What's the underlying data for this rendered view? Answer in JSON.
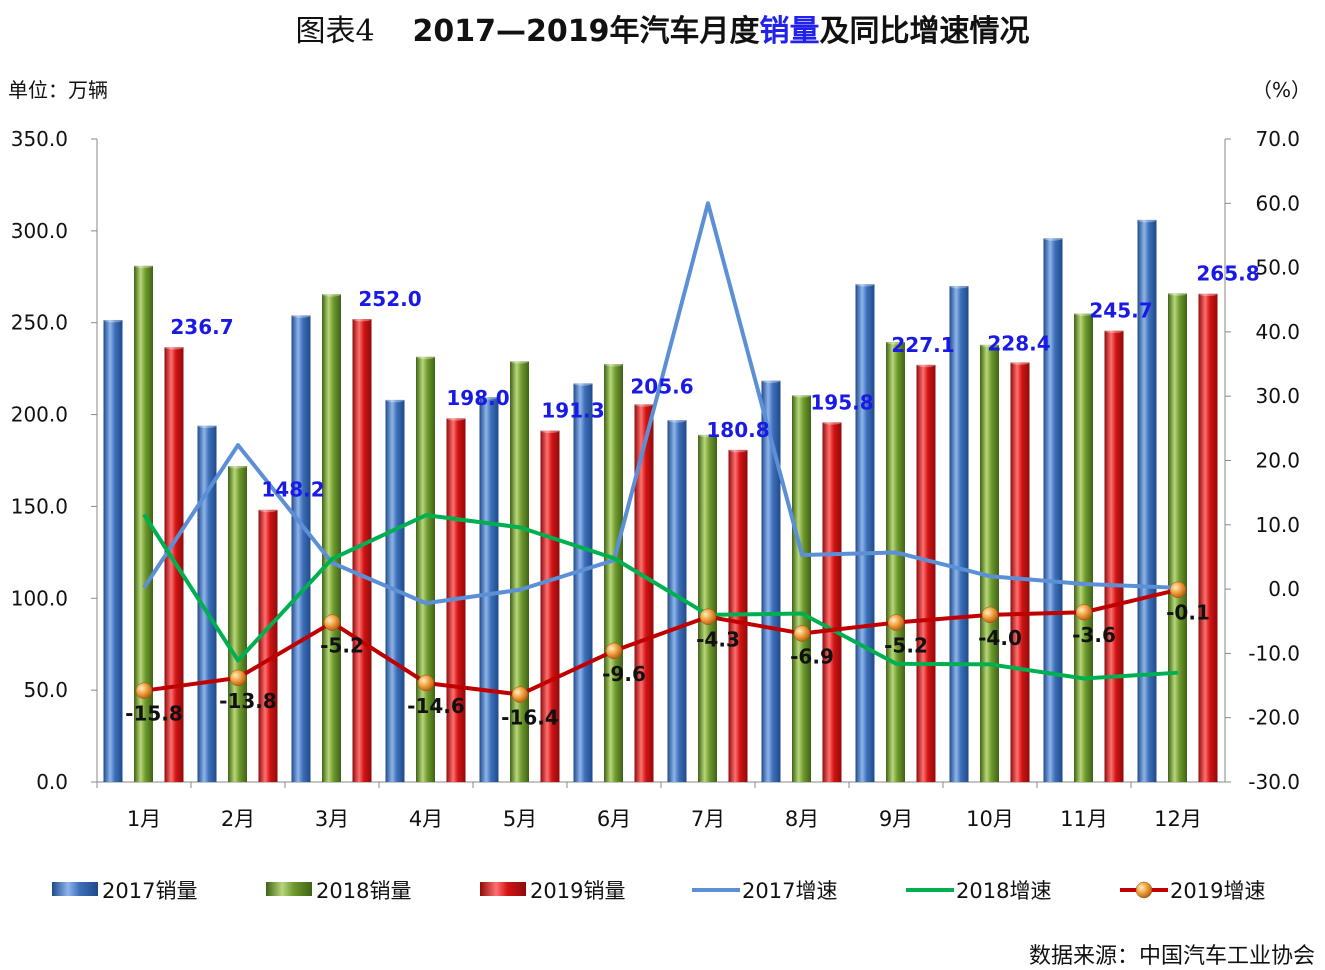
{
  "title": {
    "prefix": "图表4",
    "years": "2017—2019年汽车月度",
    "highlight": "销量",
    "suffix": "及同比增速情况"
  },
  "unit_left": "单位：万辆",
  "unit_right": "（%）",
  "source": "数据来源：中国汽车工业协会",
  "colors": {
    "bar2017": "#3d6fb8",
    "bar2018": "#6f9a2e",
    "bar2019": "#d21414",
    "line2017": "#5b8fd6",
    "line2018": "#00b050",
    "line2019": "#c00000",
    "marker2019": "#f0a040",
    "barLabel": "#1a1ae6"
  },
  "chart_data": {
    "type": "bar+line",
    "categories": [
      "1月",
      "2月",
      "3月",
      "4月",
      "5月",
      "6月",
      "7月",
      "8月",
      "9月",
      "10月",
      "11月",
      "12月"
    ],
    "ylim_left": [
      0,
      350
    ],
    "yticks_left": [
      "0.0",
      "50.0",
      "100.0",
      "150.0",
      "200.0",
      "250.0",
      "300.0",
      "350.0"
    ],
    "ylim_right": [
      -30,
      70
    ],
    "yticks_right": [
      "-30.0",
      "-20.0",
      "-10.0",
      "0.0",
      "10.0",
      "20.0",
      "30.0",
      "40.0",
      "50.0",
      "60.0",
      "70.0"
    ],
    "bar_series": [
      {
        "name": "2017销量",
        "values": [
          251.5,
          194,
          254,
          208,
          209.5,
          217,
          197,
          218.5,
          271,
          270,
          296,
          306
        ]
      },
      {
        "name": "2018销量",
        "values": [
          281,
          172,
          265.5,
          231.5,
          229,
          227.5,
          189,
          210.5,
          239.5,
          238,
          255,
          266
        ]
      },
      {
        "name": "2019销量",
        "values": [
          236.7,
          148.2,
          252.0,
          198.0,
          191.3,
          205.6,
          180.8,
          195.8,
          227.1,
          228.4,
          245.7,
          265.8
        ]
      }
    ],
    "bar_labels_2019": [
      "236.7",
      "148.2",
      "252.0",
      "198.0",
      "191.3",
      "205.6",
      "180.8",
      "195.8",
      "227.1",
      "228.4",
      "245.7",
      "265.8"
    ],
    "line_series": [
      {
        "name": "2017增速",
        "values": [
          0.2,
          22.4,
          4.1,
          -2.2,
          -0.1,
          4.5,
          60.0,
          5.3,
          5.7,
          2.0,
          0.8,
          0.2
        ]
      },
      {
        "name": "2018增速",
        "values": [
          11.6,
          -11.1,
          4.7,
          11.5,
          9.6,
          4.8,
          -4.0,
          -3.8,
          -11.6,
          -11.7,
          -13.9,
          -13.0
        ]
      },
      {
        "name": "2019增速",
        "values": [
          -15.8,
          -13.8,
          -5.2,
          -14.6,
          -16.4,
          -9.6,
          -4.3,
          -6.9,
          -5.2,
          -4.0,
          -3.6,
          -0.1
        ]
      }
    ],
    "line_labels_2019": [
      "-15.8",
      "-13.8",
      "-5.2",
      "-14.6",
      "-16.4",
      "-9.6",
      "-4.3",
      "-6.9",
      "-5.2",
      "-4.0",
      "-3.6",
      "-0.1"
    ],
    "legend": [
      "2017销量",
      "2018销量",
      "2019销量",
      "2017增速",
      "2018增速",
      "2019增速"
    ],
    "legend_position": "bottom",
    "grid": false
  }
}
